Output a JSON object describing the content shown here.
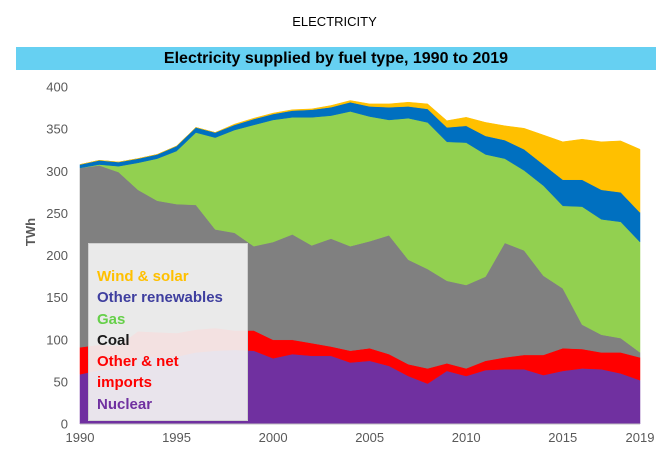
{
  "supertitle": "ELECTRICITY",
  "chart_data": {
    "type": "area",
    "stacked": true,
    "title": "Electricity supplied by fuel type, 1990 to 2019",
    "ylabel": "TWh",
    "xlabel": "",
    "xlim": [
      1990,
      2019
    ],
    "ylim": [
      0,
      400
    ],
    "x_ticks": [
      1990,
      1995,
      2000,
      2005,
      2010,
      2015,
      2019
    ],
    "y_ticks": [
      0,
      50,
      100,
      150,
      200,
      250,
      300,
      350,
      400
    ],
    "grid": false,
    "legend_position": "inside-left",
    "x": [
      1990,
      1991,
      1992,
      1993,
      1994,
      1995,
      1996,
      1997,
      1998,
      1999,
      2000,
      2001,
      2002,
      2003,
      2004,
      2005,
      2006,
      2007,
      2008,
      2009,
      2010,
      2011,
      2012,
      2013,
      2014,
      2015,
      2016,
      2017,
      2018,
      2019
    ],
    "series": [
      {
        "name": "Nuclear",
        "color": "#7030a0",
        "values": [
          59,
          64,
          65,
          80,
          80,
          80,
          85,
          87,
          88,
          87,
          78,
          83,
          81,
          81,
          73,
          75,
          69,
          57,
          48,
          63,
          57,
          64,
          65,
          65,
          58,
          63,
          66,
          65,
          60,
          52
        ]
      },
      {
        "name": "Other & net imports",
        "color": "#ff0000",
        "values": [
          32,
          30,
          28,
          30,
          29,
          28,
          27,
          27,
          23,
          24,
          22,
          17,
          15,
          11,
          14,
          15,
          14,
          14,
          18,
          9,
          9,
          11,
          14,
          17,
          24,
          27,
          23,
          20,
          25,
          27
        ]
      },
      {
        "name": "Coal",
        "color": "#808080",
        "values": [
          213,
          213,
          206,
          168,
          156,
          153,
          148,
          117,
          116,
          100,
          116,
          125,
          116,
          128,
          124,
          127,
          141,
          124,
          118,
          98,
          99,
          100,
          136,
          124,
          94,
          71,
          29,
          21,
          17,
          6
        ]
      },
      {
        "name": "Gas",
        "color": "#92d050",
        "values": [
          0,
          1,
          7,
          32,
          50,
          63,
          86,
          109,
          122,
          144,
          145,
          139,
          152,
          146,
          160,
          148,
          137,
          168,
          174,
          165,
          169,
          145,
          100,
          95,
          107,
          98,
          140,
          137,
          138,
          131
        ]
      },
      {
        "name": "Other renewables",
        "color": "#0070c0",
        "values": [
          4,
          5,
          5,
          5,
          5,
          6,
          6,
          6,
          6,
          7,
          7,
          8,
          9,
          10,
          11,
          12,
          15,
          14,
          16,
          17,
          20,
          22,
          22,
          25,
          25,
          31,
          32,
          35,
          35,
          35
        ]
      },
      {
        "name": "Wind & solar",
        "color": "#ffc000",
        "values": [
          0,
          0,
          0,
          0,
          0,
          0,
          0,
          0,
          1,
          1,
          1,
          1,
          1,
          2,
          2,
          3,
          4,
          5,
          6,
          8,
          10,
          16,
          17,
          25,
          35,
          45,
          48,
          57,
          61,
          75
        ]
      }
    ]
  }
}
